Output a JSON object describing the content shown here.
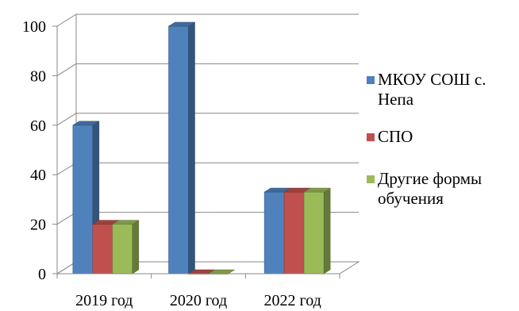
{
  "chart_data": {
    "type": "bar",
    "categories": [
      "2019 год",
      "2020 год",
      "2022 год"
    ],
    "series": [
      {
        "name": "МКОУ СОШ с. Непа",
        "values": [
          60,
          100,
          33
        ],
        "color": "#4F81BD"
      },
      {
        "name": "СПО",
        "values": [
          20,
          0,
          33
        ],
        "color": "#C0504D"
      },
      {
        "name": "Другие формы обучения",
        "values": [
          20,
          0,
          33
        ],
        "color": "#9BBB59"
      }
    ],
    "yticks": [
      0,
      20,
      40,
      60,
      80,
      100
    ],
    "ylim": [
      0,
      100
    ],
    "grid": true,
    "legend_position": "right",
    "three_d": true,
    "title": "",
    "xlabel": "",
    "ylabel": ""
  }
}
